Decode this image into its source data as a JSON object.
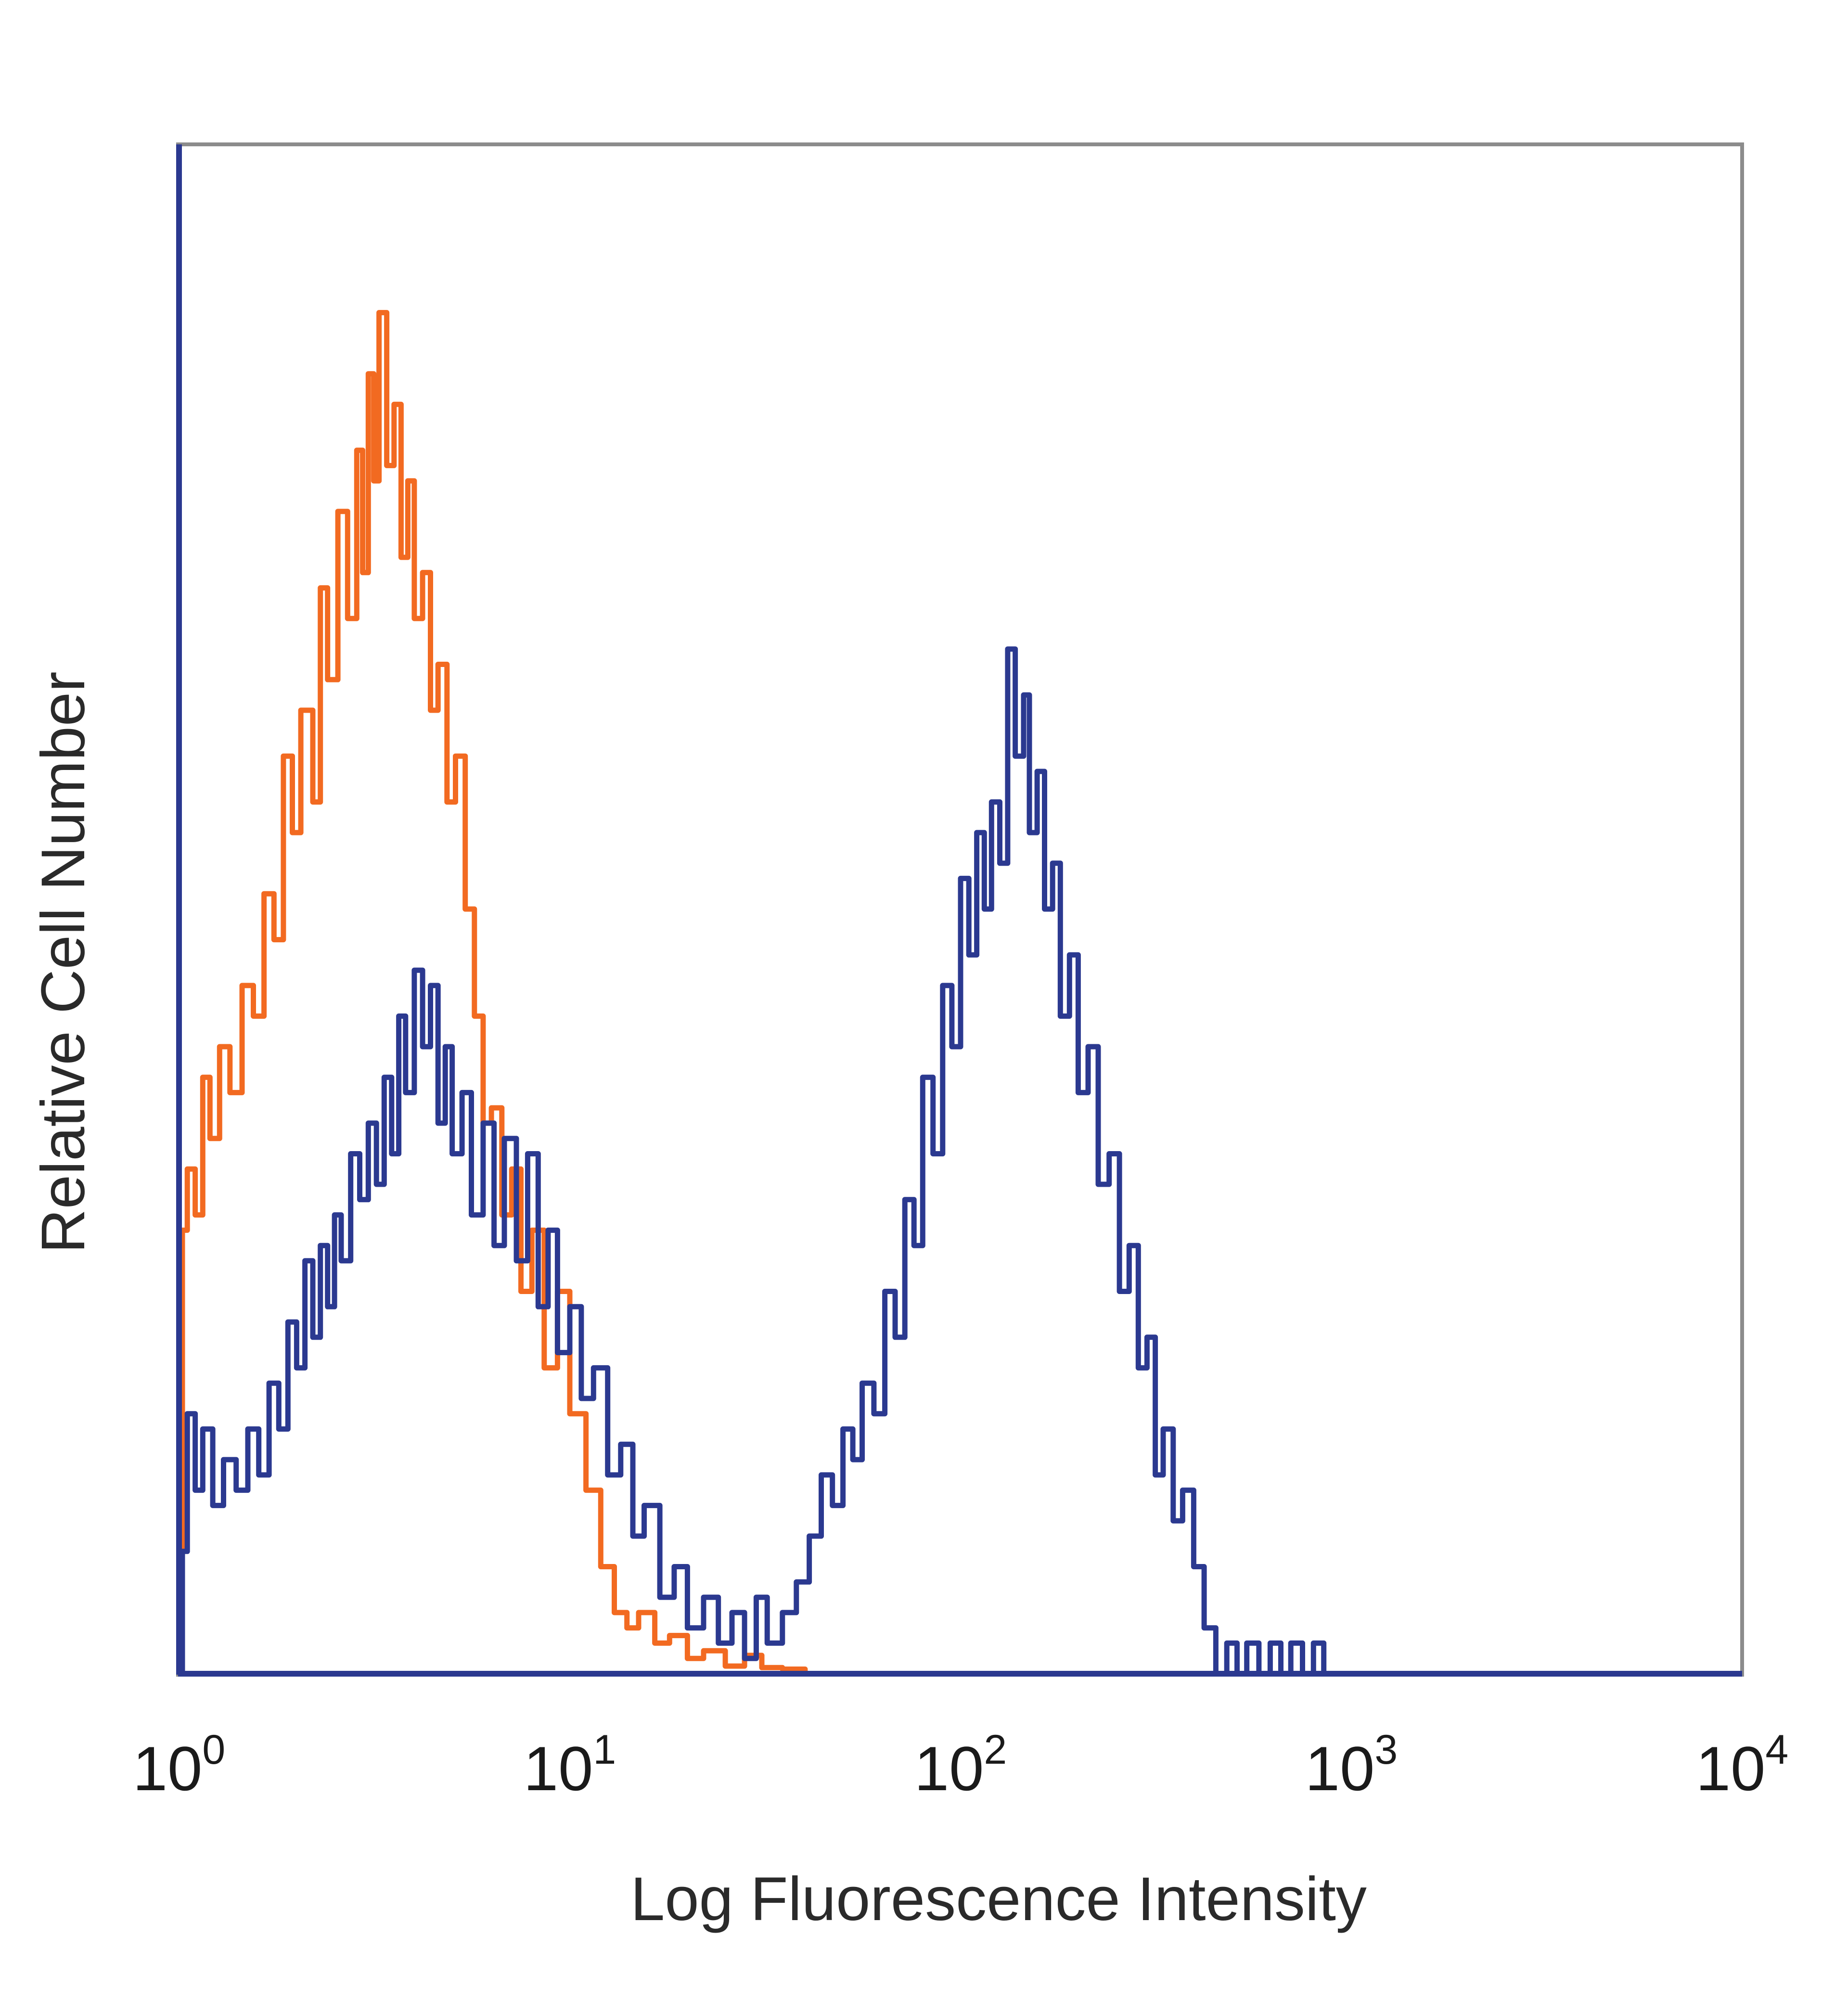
{
  "chart_data": {
    "type": "line",
    "xlabel": "Log Fluorescence Intensity",
    "ylabel": "Relative Cell Number",
    "x_scale": "log",
    "xlim": [
      1,
      10000
    ],
    "ylim": [
      0,
      1
    ],
    "grid": false,
    "x_ticks": [
      {
        "value": 1,
        "base": "10",
        "exp": "0"
      },
      {
        "value": 10,
        "base": "10",
        "exp": "1"
      },
      {
        "value": 100,
        "base": "10",
        "exp": "2"
      },
      {
        "value": 1000,
        "base": "10",
        "exp": "3"
      },
      {
        "value": 10000,
        "base": "10",
        "exp": "4"
      }
    ],
    "colors": {
      "orange": "#f26a21",
      "blue": "#2b3990",
      "frame": "#8c8c8c"
    },
    "series": [
      {
        "color": "#f26a21",
        "points": [
          [
            1.02,
            0.29
          ],
          [
            1.05,
            0.33
          ],
          [
            1.1,
            0.3
          ],
          [
            1.15,
            0.39
          ],
          [
            1.2,
            0.35
          ],
          [
            1.27,
            0.41
          ],
          [
            1.35,
            0.38
          ],
          [
            1.45,
            0.45
          ],
          [
            1.55,
            0.43
          ],
          [
            1.65,
            0.51
          ],
          [
            1.75,
            0.48
          ],
          [
            1.85,
            0.6
          ],
          [
            1.95,
            0.55
          ],
          [
            2.05,
            0.63
          ],
          [
            2.2,
            0.57
          ],
          [
            2.3,
            0.71
          ],
          [
            2.4,
            0.65
          ],
          [
            2.55,
            0.76
          ],
          [
            2.7,
            0.69
          ],
          [
            2.85,
            0.8
          ],
          [
            2.95,
            0.72
          ],
          [
            3.05,
            0.85
          ],
          [
            3.15,
            0.78
          ],
          [
            3.25,
            0.89
          ],
          [
            3.4,
            0.79
          ],
          [
            3.55,
            0.83
          ],
          [
            3.7,
            0.73
          ],
          [
            3.85,
            0.78
          ],
          [
            4.0,
            0.69
          ],
          [
            4.2,
            0.72
          ],
          [
            4.4,
            0.63
          ],
          [
            4.6,
            0.66
          ],
          [
            4.85,
            0.57
          ],
          [
            5.1,
            0.6
          ],
          [
            5.4,
            0.5
          ],
          [
            5.7,
            0.43
          ],
          [
            6.0,
            0.36
          ],
          [
            6.3,
            0.37
          ],
          [
            6.7,
            0.3
          ],
          [
            7.1,
            0.33
          ],
          [
            7.5,
            0.25
          ],
          [
            8.0,
            0.29
          ],
          [
            8.6,
            0.2
          ],
          [
            9.3,
            0.25
          ],
          [
            10.0,
            0.17
          ],
          [
            11.0,
            0.12
          ],
          [
            12.0,
            0.07
          ],
          [
            13.0,
            0.04
          ],
          [
            14.0,
            0.03
          ],
          [
            15.0,
            0.04
          ],
          [
            16.5,
            0.02
          ],
          [
            18.0,
            0.025
          ],
          [
            20.0,
            0.01
          ],
          [
            22.0,
            0.015
          ],
          [
            25.0,
            0.005
          ],
          [
            28.0,
            0.012
          ],
          [
            31.0,
            0.004
          ],
          [
            35.0,
            0.003
          ],
          [
            40.0,
            0.0
          ],
          [
            400.0,
            0.0
          ]
        ]
      },
      {
        "color": "#2b3990",
        "points": [
          [
            1.02,
            0.08
          ],
          [
            1.05,
            0.17
          ],
          [
            1.1,
            0.12
          ],
          [
            1.15,
            0.16
          ],
          [
            1.22,
            0.11
          ],
          [
            1.3,
            0.14
          ],
          [
            1.4,
            0.12
          ],
          [
            1.5,
            0.16
          ],
          [
            1.6,
            0.13
          ],
          [
            1.7,
            0.19
          ],
          [
            1.8,
            0.16
          ],
          [
            1.9,
            0.23
          ],
          [
            2.0,
            0.2
          ],
          [
            2.1,
            0.27
          ],
          [
            2.2,
            0.22
          ],
          [
            2.3,
            0.28
          ],
          [
            2.4,
            0.24
          ],
          [
            2.5,
            0.3
          ],
          [
            2.6,
            0.27
          ],
          [
            2.75,
            0.34
          ],
          [
            2.9,
            0.31
          ],
          [
            3.05,
            0.36
          ],
          [
            3.2,
            0.32
          ],
          [
            3.35,
            0.39
          ],
          [
            3.5,
            0.34
          ],
          [
            3.65,
            0.43
          ],
          [
            3.8,
            0.38
          ],
          [
            4.0,
            0.46
          ],
          [
            4.2,
            0.41
          ],
          [
            4.4,
            0.45
          ],
          [
            4.6,
            0.36
          ],
          [
            4.8,
            0.41
          ],
          [
            5.0,
            0.34
          ],
          [
            5.3,
            0.38
          ],
          [
            5.6,
            0.3
          ],
          [
            6.0,
            0.36
          ],
          [
            6.4,
            0.28
          ],
          [
            6.8,
            0.35
          ],
          [
            7.3,
            0.27
          ],
          [
            7.8,
            0.34
          ],
          [
            8.3,
            0.24
          ],
          [
            8.8,
            0.29
          ],
          [
            9.3,
            0.21
          ],
          [
            10.0,
            0.24
          ],
          [
            10.7,
            0.18
          ],
          [
            11.5,
            0.2
          ],
          [
            12.5,
            0.13
          ],
          [
            13.5,
            0.15
          ],
          [
            14.5,
            0.09
          ],
          [
            15.5,
            0.11
          ],
          [
            17.0,
            0.05
          ],
          [
            18.5,
            0.07
          ],
          [
            20.0,
            0.03
          ],
          [
            22.0,
            0.05
          ],
          [
            24.0,
            0.02
          ],
          [
            26.0,
            0.04
          ],
          [
            28.0,
            0.01
          ],
          [
            30.0,
            0.05
          ],
          [
            32.0,
            0.02
          ],
          [
            35.0,
            0.04
          ],
          [
            38.0,
            0.06
          ],
          [
            41.0,
            0.09
          ],
          [
            44.0,
            0.13
          ],
          [
            47.0,
            0.11
          ],
          [
            50.0,
            0.16
          ],
          [
            53.0,
            0.14
          ],
          [
            56.0,
            0.19
          ],
          [
            60.0,
            0.17
          ],
          [
            64.0,
            0.25
          ],
          [
            68.0,
            0.22
          ],
          [
            72.0,
            0.31
          ],
          [
            76.0,
            0.28
          ],
          [
            80.0,
            0.39
          ],
          [
            85.0,
            0.34
          ],
          [
            90.0,
            0.45
          ],
          [
            95.0,
            0.41
          ],
          [
            100.0,
            0.52
          ],
          [
            105.0,
            0.47
          ],
          [
            110.0,
            0.55
          ],
          [
            115.0,
            0.5
          ],
          [
            120.0,
            0.57
          ],
          [
            126.0,
            0.53
          ],
          [
            132.0,
            0.67
          ],
          [
            138.0,
            0.6
          ],
          [
            145.0,
            0.64
          ],
          [
            150.0,
            0.55
          ],
          [
            157.0,
            0.59
          ],
          [
            164.0,
            0.5
          ],
          [
            172.0,
            0.53
          ],
          [
            180.0,
            0.43
          ],
          [
            190.0,
            0.47
          ],
          [
            200.0,
            0.38
          ],
          [
            212.0,
            0.41
          ],
          [
            225.0,
            0.32
          ],
          [
            240.0,
            0.34
          ],
          [
            255.0,
            0.25
          ],
          [
            270.0,
            0.28
          ],
          [
            285.0,
            0.2
          ],
          [
            300.0,
            0.22
          ],
          [
            315.0,
            0.13
          ],
          [
            330.0,
            0.16
          ],
          [
            350.0,
            0.1
          ],
          [
            370.0,
            0.12
          ],
          [
            395.0,
            0.07
          ],
          [
            420.0,
            0.03
          ],
          [
            450.0,
            0.0
          ],
          [
            480.0,
            0.02
          ],
          [
            510.0,
            0.0
          ],
          [
            540.0,
            0.02
          ],
          [
            580.0,
            0.0
          ],
          [
            620.0,
            0.02
          ],
          [
            660.0,
            0.0
          ],
          [
            700.0,
            0.02
          ],
          [
            750.0,
            0.0
          ],
          [
            800.0,
            0.02
          ],
          [
            850.0,
            0.0
          ],
          [
            10000.0,
            0.0
          ]
        ]
      }
    ]
  }
}
